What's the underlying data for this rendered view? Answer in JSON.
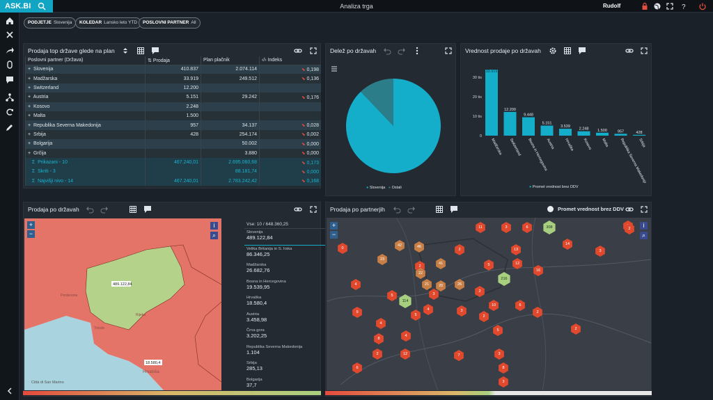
{
  "app": {
    "logo": "ASK.BI",
    "title": "Analiza trga",
    "user": "Rudolf"
  },
  "sidebar": {
    "icons": [
      "home-icon",
      "close-icon",
      "share-icon",
      "attach-icon",
      "comment-icon",
      "hierarchy-icon",
      "refresh-icon",
      "edit-icon",
      "collapse-icon"
    ]
  },
  "filters": [
    {
      "key": "PODJETJE",
      "val": "Slovenija"
    },
    {
      "key": "KOLEDAR",
      "val": "Lansko leto YTD"
    },
    {
      "key": "POSLOVNI PARTNER",
      "val": "All"
    }
  ],
  "table_panel": {
    "title": "Prodaja top države glede na plan",
    "headers": [
      "Poslovni partner (Država)",
      "Prodaja",
      "Plan plačnik",
      "Indeks"
    ],
    "rows": [
      [
        "Slovenija",
        "410.837",
        "2.074.114",
        "0,198"
      ],
      [
        "Madžarska",
        "33.919",
        "249.512",
        "0,136"
      ],
      [
        "Switzerland",
        "12.200",
        "",
        ""
      ],
      [
        "Austria",
        "5.151",
        "29.242",
        "0,176"
      ],
      [
        "Kosovo",
        "2.248",
        "",
        ""
      ],
      [
        "Malta",
        "1.500",
        "",
        ""
      ],
      [
        "Republika Severna Makedonija",
        "957",
        "34.137",
        "0,028"
      ],
      [
        "Srbija",
        "428",
        "254.174",
        "0,002"
      ],
      [
        "Bolgarija",
        "",
        "50.002",
        "0,000"
      ],
      [
        "Grčija",
        "",
        "3.880",
        "0,000"
      ]
    ],
    "summary": [
      [
        "Prikazani - 10",
        "467.240,01",
        "2.695.060,68",
        "0,173"
      ],
      [
        "Skriti - 3",
        "",
        "88.181,74",
        "0,000"
      ],
      [
        "Najvišji nivo - 14",
        "467.240,01",
        "2.783.242,42",
        "0,168"
      ]
    ]
  },
  "pie_panel": {
    "title": "Delež po državah",
    "legend": [
      "Slovenija",
      "Ostali"
    ]
  },
  "bar_panel": {
    "title": "Vrednost prodaje po državah",
    "legend": "Promet vrednost brez DDV"
  },
  "chart_data": [
    {
      "type": "pie",
      "title": "Delež po državah",
      "categories": [
        "Slovenija",
        "Ostali"
      ],
      "values": [
        87.9,
        12.1
      ],
      "colors": [
        "#14aecb",
        "#2a7d89"
      ]
    },
    {
      "type": "bar",
      "title": "Vrednost prodaje po državah",
      "categories": [
        "Madžarska",
        "Switzerland",
        "Bosna in Hercegovina",
        "Austria",
        "Hrvaška",
        "Kosovo",
        "Malta",
        "Republika Severna Makedonija",
        "Srbija"
      ],
      "values": [
        33919,
        12200,
        9448,
        5151,
        3539,
        2248,
        1500,
        957,
        428
      ],
      "labels": [
        "33.919",
        "12.200",
        "9.448",
        "5.151",
        "3.539",
        "2.248",
        "1.500",
        "957",
        "428"
      ],
      "yticks": [
        "0",
        "10 tis",
        "20 tis",
        "30 tis"
      ],
      "ylim": [
        0,
        35000
      ],
      "series": [
        {
          "name": "Promet vrednost brez DDV"
        }
      ]
    }
  ],
  "map_panel": {
    "title": "Prodaja po državah",
    "list_header": "Vse: 10 / 648.360,25",
    "items": [
      [
        "Slovenija",
        "489.122,84"
      ],
      [
        "Velika Britanija in S. Irska",
        "86.346,25"
      ],
      [
        "Madžarska",
        "26.682,76"
      ],
      [
        "Bosna in Hercegovina",
        "19.539,95"
      ],
      [
        "Hrvaška",
        "18.580,4"
      ],
      [
        "Austria",
        "3.458,98"
      ],
      [
        "Črna gora",
        "3.202,25"
      ],
      [
        "Republika Severna Makedonija",
        "1.104"
      ],
      [
        "Srbija",
        "285,13"
      ],
      [
        "Bolgarija",
        "37,7"
      ]
    ],
    "map_labels": [
      "489.122,84",
      "18.580,4"
    ],
    "places": [
      "Ljubljana",
      "Trieste",
      "Pordenone",
      "Rijeka",
      "Zagreb",
      "Hrvatska",
      "Città di San Marino"
    ]
  },
  "partner_panel": {
    "title": "Prodaja po partnerjih",
    "toggle": "Promet vrednost brez DDV",
    "clusters": [
      "11",
      "3",
      "6",
      "308",
      "2",
      "0",
      "42",
      "46",
      "2",
      "13",
      "14",
      "3",
      "23",
      "12",
      "2",
      "5",
      "41",
      "216",
      "22",
      "21",
      "20",
      "16",
      "4",
      "26",
      "2",
      "3",
      "5",
      "114",
      "6",
      "4",
      "10",
      "9",
      "3",
      "2",
      "5",
      "4",
      "2",
      "8",
      "5",
      "4",
      "12",
      "2",
      "2",
      "7",
      "3",
      "8",
      "6",
      "3",
      "2"
    ]
  }
}
